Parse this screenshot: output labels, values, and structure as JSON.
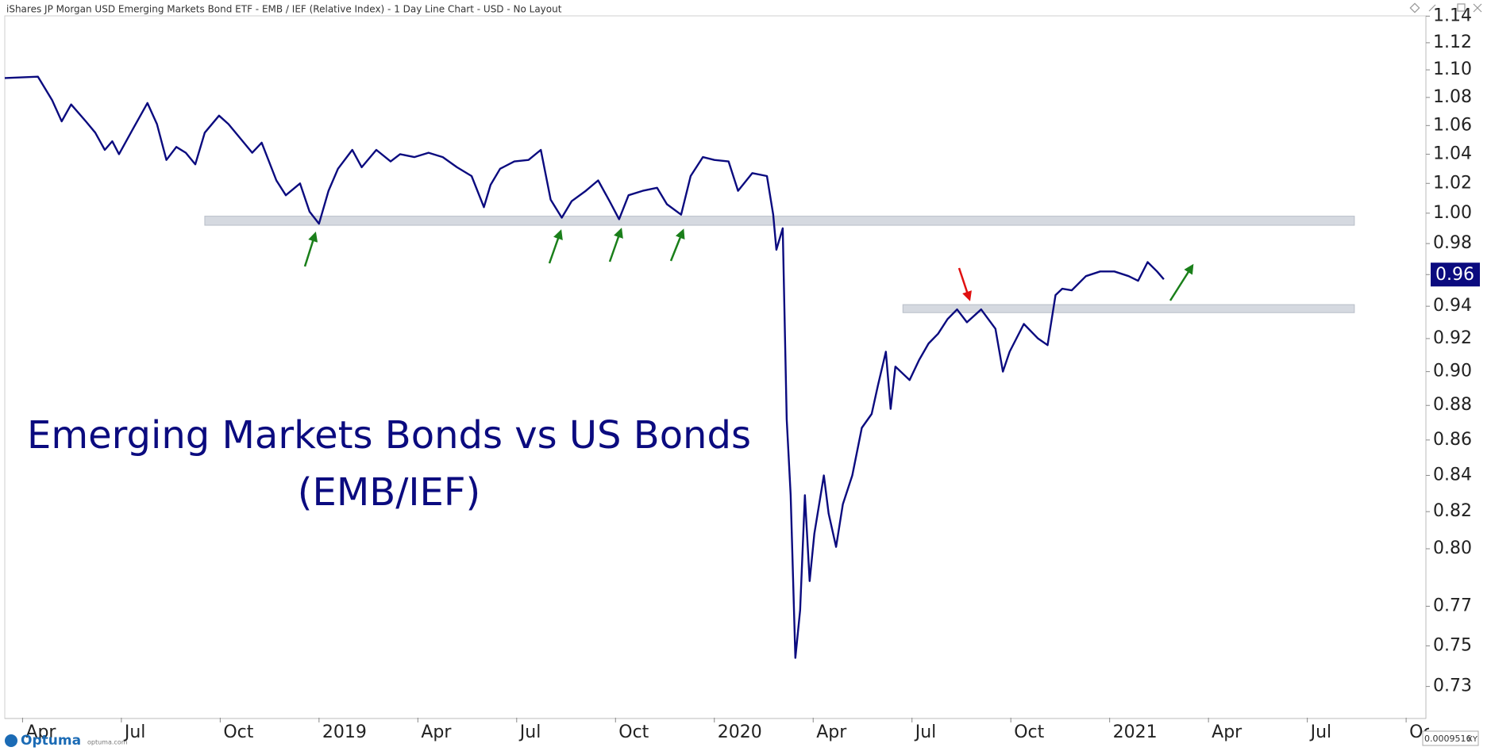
{
  "header": {
    "title": "iShares JP Morgan USD Emerging Markets Bond ETF - EMB / IEF (Relative Index) - 1 Day Line Chart - USD - No Layout"
  },
  "footer": {
    "brand": "Optuma",
    "site": "optuma.com",
    "cursor_value": "0.0009516",
    "mode": "XY"
  },
  "chart_data": {
    "type": "line",
    "annotations": [
      "Emerging Markets Bonds vs US Bonds",
      "(EMB/IEF)"
    ],
    "log_scale": true,
    "grid": false,
    "xlim": [
      2018.205,
      2021.8
    ],
    "xticks": [
      {
        "value": 2018.25,
        "label": "Apr"
      },
      {
        "value": 2018.5,
        "label": "Jul"
      },
      {
        "value": 2018.75,
        "label": "Oct"
      },
      2019,
      {
        "value": 2019.25,
        "label": "Apr"
      },
      {
        "value": 2019.5,
        "label": "Jul"
      },
      {
        "value": 2019.75,
        "label": "Oct"
      },
      2020,
      {
        "value": 2020.25,
        "label": "Apr"
      },
      {
        "value": 2020.5,
        "label": "Jul"
      },
      {
        "value": 2020.75,
        "label": "Oct"
      },
      2021,
      {
        "value": 2021.25,
        "label": "Apr"
      },
      {
        "value": 2021.5,
        "label": "Jul"
      },
      {
        "value": 2021.75,
        "label": "Oct"
      }
    ],
    "ylim": [
      0.715,
      1.139
    ],
    "yticks": [
      0.73,
      0.75,
      0.77,
      {
        "value": 0.8,
        "label": "0.80"
      },
      0.82,
      0.84,
      0.86,
      0.88,
      {
        "value": 0.9,
        "label": "0.90"
      },
      0.92,
      0.94,
      0.96,
      0.98,
      {
        "value": 1,
        "label": "1.00"
      },
      1.02,
      1.04,
      1.06,
      1.08,
      {
        "value": 1.1,
        "label": "1.10"
      },
      1.12,
      1.14
    ],
    "current_value": 0.96,
    "bands": [
      {
        "x": [
          2018.711,
          2021.619
        ],
        "y": [
          0.992,
          0.998
        ],
        "color": "#d5d9e0"
      },
      {
        "x": [
          2020.477,
          2021.619
        ],
        "y": [
          0.936,
          0.941
        ],
        "color": "#d5d9e0"
      }
    ],
    "x": [
      2018.205,
      2018.289,
      2018.325,
      2018.349,
      2018.373,
      2018.41,
      2018.434,
      2018.458,
      2018.477,
      2018.494,
      2018.53,
      2018.566,
      2018.59,
      2018.614,
      2018.639,
      2018.663,
      2018.687,
      2018.711,
      2018.747,
      2018.771,
      2018.807,
      2018.831,
      2018.855,
      2018.892,
      2018.916,
      2018.952,
      2018.976,
      2019.0,
      2019.024,
      2019.048,
      2019.084,
      2019.108,
      2019.145,
      2019.181,
      2019.205,
      2019.241,
      2019.277,
      2019.313,
      2019.349,
      2019.386,
      2019.417,
      2019.434,
      2019.458,
      2019.494,
      2019.53,
      2019.561,
      2019.586,
      2019.614,
      2019.639,
      2019.675,
      2019.706,
      2019.735,
      2019.759,
      2019.783,
      2019.819,
      2019.855,
      2019.88,
      2019.916,
      2019.94,
      2019.971,
      2020.0,
      2020.036,
      2020.06,
      2020.096,
      2020.133,
      2020.149,
      2020.157,
      2020.173,
      2020.176,
      2020.183,
      2020.193,
      2020.205,
      2020.217,
      2020.229,
      2020.241,
      2020.253,
      2020.277,
      2020.289,
      2020.308,
      2020.325,
      2020.349,
      2020.373,
      2020.398,
      2020.414,
      2020.434,
      2020.446,
      2020.458,
      2020.494,
      2020.518,
      2020.542,
      2020.566,
      2020.59,
      2020.614,
      2020.639,
      2020.675,
      2020.711,
      2020.73,
      2020.747,
      2020.783,
      2020.819,
      2020.843,
      2020.863,
      2020.88,
      2020.904,
      2020.94,
      2020.976,
      2021.012,
      2021.048,
      2021.072,
      2021.096,
      2021.12,
      2021.137
    ],
    "series": [
      {
        "color": "#0b0b7f",
        "values": [
          1.094,
          1.095,
          1.078,
          1.063,
          1.075,
          1.063,
          1.055,
          1.043,
          1.049,
          1.04,
          1.058,
          1.076,
          1.061,
          1.036,
          1.045,
          1.041,
          1.033,
          1.055,
          1.067,
          1.061,
          1.049,
          1.041,
          1.048,
          1.022,
          1.012,
          1.02,
          1.001,
          0.993,
          1.015,
          1.03,
          1.043,
          1.031,
          1.043,
          1.035,
          1.04,
          1.038,
          1.041,
          1.038,
          1.031,
          1.025,
          1.004,
          1.019,
          1.03,
          1.035,
          1.036,
          1.043,
          1.009,
          0.997,
          1.008,
          1.015,
          1.022,
          1.008,
          0.996,
          1.012,
          1.015,
          1.017,
          1.006,
          0.999,
          1.025,
          1.038,
          1.036,
          1.035,
          1.015,
          1.027,
          1.025,
          0.999,
          0.976,
          0.99,
          0.953,
          0.872,
          0.829,
          0.744,
          0.768,
          0.829,
          0.783,
          0.808,
          0.84,
          0.819,
          0.801,
          0.824,
          0.84,
          0.867,
          0.875,
          0.892,
          0.912,
          0.878,
          0.903,
          0.895,
          0.907,
          0.917,
          0.923,
          0.932,
          0.938,
          0.93,
          0.938,
          0.926,
          0.9,
          0.912,
          0.929,
          0.92,
          0.916,
          0.947,
          0.951,
          0.95,
          0.959,
          0.962,
          0.962,
          0.959,
          0.956,
          0.968,
          0.962,
          0.957
        ]
      }
    ]
  }
}
